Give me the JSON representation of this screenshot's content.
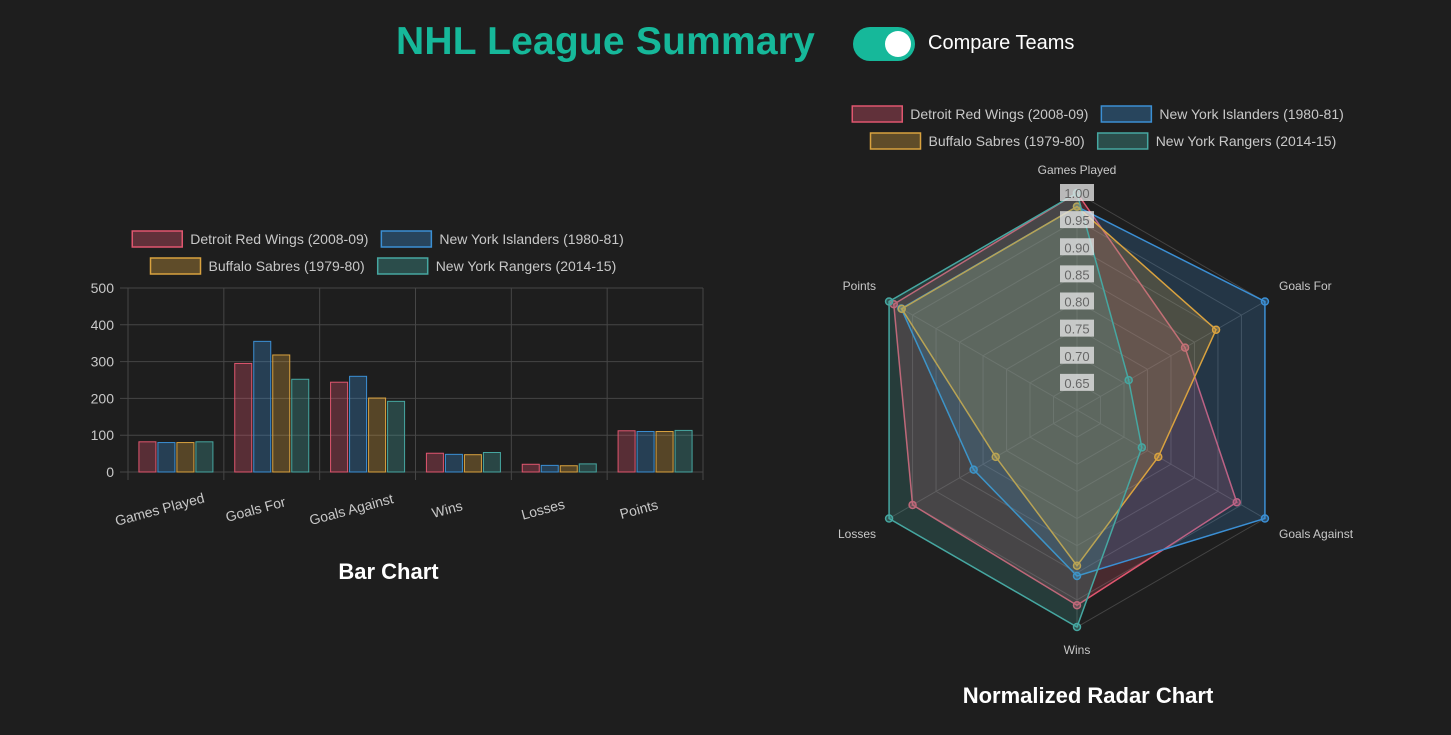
{
  "header": {
    "title": "NHL League Summary",
    "toggle_label": "Compare Teams",
    "toggle_on": true
  },
  "colors": {
    "accent": "#16b89a",
    "background": "#1e1e1e",
    "series": [
      "#e0566f",
      "#3b8fd4",
      "#d9a23f",
      "#46a7a1"
    ]
  },
  "chart_data": [
    {
      "type": "bar",
      "title": "Bar Chart",
      "categories": [
        "Games Played",
        "Goals For",
        "Goals Against",
        "Wins",
        "Losses",
        "Points"
      ],
      "series": [
        {
          "name": "Detroit Red Wings (2008-09)",
          "values": [
            82,
            295,
            244,
            51,
            21,
            112
          ]
        },
        {
          "name": "New York Islanders (1980-81)",
          "values": [
            80,
            355,
            260,
            48,
            18,
            110
          ]
        },
        {
          "name": "Buffalo Sabres (1979-80)",
          "values": [
            80,
            318,
            201,
            47,
            17,
            110
          ]
        },
        {
          "name": "New York Rangers (2014-15)",
          "values": [
            82,
            252,
            192,
            53,
            22,
            113
          ]
        }
      ],
      "ylim": [
        0,
        500
      ],
      "yticks": [
        0,
        100,
        200,
        300,
        400,
        500
      ],
      "grid": true,
      "legend": "top"
    },
    {
      "type": "radar",
      "title": "Normalized Radar Chart",
      "categories": [
        "Games Played",
        "Goals For",
        "Goals Against",
        "Wins",
        "Losses",
        "Points"
      ],
      "series": [
        {
          "name": "Detroit Red Wings (2008-09)",
          "values": [
            1.0,
            0.83,
            0.94,
            0.96,
            0.95,
            0.99
          ]
        },
        {
          "name": "New York Islanders (1980-81)",
          "values": [
            0.975,
            1.0,
            1.0,
            0.906,
            0.82,
            0.974
          ]
        },
        {
          "name": "Buffalo Sabres (1979-80)",
          "values": [
            0.975,
            0.896,
            0.773,
            0.887,
            0.773,
            0.973
          ]
        },
        {
          "name": "New York Rangers (2014-15)",
          "values": [
            1.0,
            0.71,
            0.738,
            1.0,
            1.0,
            1.0
          ]
        }
      ],
      "r_range": [
        0.6,
        1.0
      ],
      "rticks": [
        "0.65",
        "0.70",
        "0.75",
        "0.80",
        "0.85",
        "0.90",
        "0.95",
        "1.00"
      ],
      "grid": true,
      "legend": "top"
    }
  ]
}
